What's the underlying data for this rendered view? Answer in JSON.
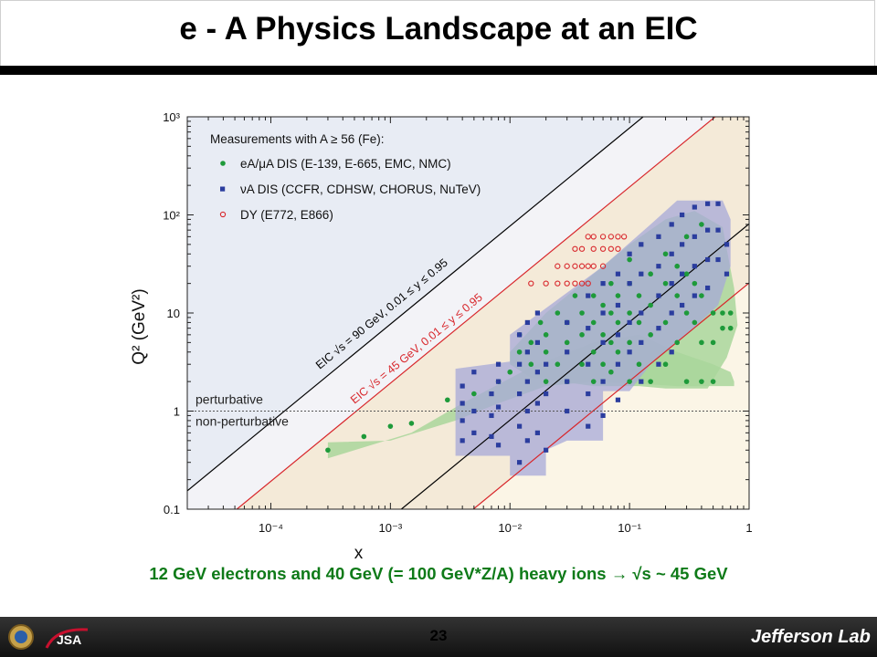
{
  "slide": {
    "title": "e - A Physics Landscape at an EIC",
    "caption": "12 GeV electrons and 40 GeV (= 100 GeV*Z/A) heavy ions  → √s ~  45 GeV",
    "page_number": "23",
    "footer_logo_text": "Jefferson Lab",
    "footer_left_text": "JSA"
  },
  "chart_data": {
    "type": "scatter",
    "xscale": "log",
    "yscale": "log",
    "xlim": [
      2e-05,
      1
    ],
    "ylim": [
      0.1,
      1000
    ],
    "xlabel": "x",
    "ylabel": "Q² (GeV²)",
    "x_ticks": [
      "10⁻⁴",
      "10⁻³",
      "10⁻²",
      "10⁻¹",
      "1"
    ],
    "x_tick_values": [
      0.0001,
      0.001,
      0.01,
      0.1,
      1
    ],
    "y_ticks": [
      "0.1",
      "1",
      "10",
      "10²",
      "10³"
    ],
    "y_tick_values": [
      0.1,
      1,
      10,
      100,
      1000
    ],
    "legend_title": "Measurements with A ≥ 56 (Fe):",
    "legend_position": "top-left",
    "series": [
      {
        "name": "eA/μA DIS (E-139, E-665, EMC, NMC)",
        "marker": "filled-circle",
        "color": "#1e9a3a",
        "points": [
          [
            0.0003,
            0.4
          ],
          [
            0.0006,
            0.55
          ],
          [
            0.001,
            0.7
          ],
          [
            0.0015,
            0.75
          ],
          [
            0.003,
            1.3
          ],
          [
            0.005,
            1.5
          ],
          [
            0.008,
            2
          ],
          [
            0.01,
            2.5
          ],
          [
            0.012,
            4
          ],
          [
            0.012,
            6
          ],
          [
            0.015,
            3
          ],
          [
            0.015,
            5
          ],
          [
            0.018,
            8
          ],
          [
            0.02,
            2
          ],
          [
            0.02,
            4
          ],
          [
            0.02,
            6
          ],
          [
            0.025,
            3
          ],
          [
            0.025,
            10
          ],
          [
            0.03,
            2
          ],
          [
            0.03,
            5
          ],
          [
            0.03,
            8
          ],
          [
            0.035,
            15
          ],
          [
            0.04,
            3
          ],
          [
            0.04,
            6
          ],
          [
            0.04,
            10
          ],
          [
            0.05,
            2
          ],
          [
            0.05,
            4
          ],
          [
            0.05,
            8
          ],
          [
            0.05,
            15
          ],
          [
            0.06,
            3
          ],
          [
            0.06,
            6
          ],
          [
            0.06,
            12
          ],
          [
            0.07,
            2.5
          ],
          [
            0.07,
            5
          ],
          [
            0.07,
            10
          ],
          [
            0.07,
            20
          ],
          [
            0.08,
            4
          ],
          [
            0.08,
            8
          ],
          [
            0.08,
            15
          ],
          [
            0.1,
            2
          ],
          [
            0.1,
            5
          ],
          [
            0.1,
            10
          ],
          [
            0.1,
            20
          ],
          [
            0.1,
            35
          ],
          [
            0.12,
            3
          ],
          [
            0.12,
            8
          ],
          [
            0.12,
            15
          ],
          [
            0.15,
            2
          ],
          [
            0.15,
            6
          ],
          [
            0.15,
            12
          ],
          [
            0.15,
            25
          ],
          [
            0.2,
            3
          ],
          [
            0.2,
            8
          ],
          [
            0.2,
            20
          ],
          [
            0.2,
            40
          ],
          [
            0.25,
            5
          ],
          [
            0.25,
            15
          ],
          [
            0.25,
            30
          ],
          [
            0.3,
            2
          ],
          [
            0.3,
            10
          ],
          [
            0.3,
            25
          ],
          [
            0.3,
            60
          ],
          [
            0.35,
            8
          ],
          [
            0.35,
            20
          ],
          [
            0.4,
            2
          ],
          [
            0.4,
            5
          ],
          [
            0.4,
            15
          ],
          [
            0.4,
            80
          ],
          [
            0.5,
            5
          ],
          [
            0.5,
            10
          ],
          [
            0.5,
            2
          ],
          [
            0.6,
            7
          ],
          [
            0.6,
            10
          ],
          [
            0.7,
            7
          ],
          [
            0.7,
            10
          ]
        ]
      },
      {
        "name": "νA DIS (CCFR, CDHSW, CHORUS, NuTeV)",
        "marker": "filled-square",
        "color": "#2b3d9e",
        "points": [
          [
            0.004,
            1.8
          ],
          [
            0.004,
            1.2
          ],
          [
            0.004,
            0.8
          ],
          [
            0.004,
            0.5
          ],
          [
            0.005,
            2.5
          ],
          [
            0.005,
            1
          ],
          [
            0.005,
            0.6
          ],
          [
            0.007,
            1.5
          ],
          [
            0.007,
            0.9
          ],
          [
            0.007,
            0.55
          ],
          [
            0.008,
            3
          ],
          [
            0.008,
            2
          ],
          [
            0.008,
            1.1
          ],
          [
            0.008,
            0.45
          ],
          [
            0.012,
            6
          ],
          [
            0.012,
            3
          ],
          [
            0.012,
            1.5
          ],
          [
            0.012,
            0.7
          ],
          [
            0.012,
            0.3
          ],
          [
            0.014,
            8
          ],
          [
            0.014,
            4
          ],
          [
            0.014,
            2
          ],
          [
            0.014,
            1
          ],
          [
            0.014,
            0.5
          ],
          [
            0.017,
            10
          ],
          [
            0.017,
            5
          ],
          [
            0.017,
            2.5
          ],
          [
            0.017,
            1.2
          ],
          [
            0.017,
            0.6
          ],
          [
            0.02,
            0.4
          ],
          [
            0.02,
            1.5
          ],
          [
            0.02,
            3
          ],
          [
            0.03,
            8
          ],
          [
            0.03,
            4
          ],
          [
            0.03,
            2
          ],
          [
            0.03,
            1
          ],
          [
            0.045,
            15
          ],
          [
            0.045,
            7
          ],
          [
            0.045,
            3
          ],
          [
            0.045,
            1.5
          ],
          [
            0.045,
            0.7
          ],
          [
            0.06,
            20
          ],
          [
            0.06,
            10
          ],
          [
            0.06,
            5
          ],
          [
            0.06,
            2
          ],
          [
            0.06,
            0.9
          ],
          [
            0.08,
            25
          ],
          [
            0.08,
            12
          ],
          [
            0.08,
            6
          ],
          [
            0.08,
            3
          ],
          [
            0.08,
            1.3
          ],
          [
            0.1,
            40
          ],
          [
            0.1,
            20
          ],
          [
            0.1,
            8
          ],
          [
            0.1,
            4
          ],
          [
            0.125,
            50
          ],
          [
            0.125,
            25
          ],
          [
            0.125,
            10
          ],
          [
            0.125,
            5
          ],
          [
            0.125,
            2
          ],
          [
            0.175,
            60
          ],
          [
            0.175,
            30
          ],
          [
            0.175,
            15
          ],
          [
            0.175,
            7
          ],
          [
            0.175,
            3
          ],
          [
            0.225,
            80
          ],
          [
            0.225,
            40
          ],
          [
            0.225,
            20
          ],
          [
            0.225,
            10
          ],
          [
            0.225,
            4
          ],
          [
            0.275,
            100
          ],
          [
            0.275,
            50
          ],
          [
            0.275,
            25
          ],
          [
            0.275,
            12
          ],
          [
            0.35,
            120
          ],
          [
            0.35,
            60
          ],
          [
            0.35,
            30
          ],
          [
            0.35,
            15
          ],
          [
            0.45,
            130
          ],
          [
            0.45,
            70
          ],
          [
            0.45,
            35
          ],
          [
            0.45,
            18
          ],
          [
            0.55,
            130
          ],
          [
            0.55,
            70
          ],
          [
            0.55,
            35
          ],
          [
            0.65,
            50
          ],
          [
            0.65,
            25
          ]
        ]
      },
      {
        "name": "DY (E772, E866)",
        "marker": "open-circle",
        "color": "#d8262b",
        "points": [
          [
            0.015,
            20
          ],
          [
            0.02,
            20
          ],
          [
            0.025,
            20
          ],
          [
            0.03,
            20
          ],
          [
            0.035,
            20
          ],
          [
            0.04,
            20
          ],
          [
            0.045,
            20
          ],
          [
            0.025,
            30
          ],
          [
            0.03,
            30
          ],
          [
            0.035,
            30
          ],
          [
            0.04,
            30
          ],
          [
            0.045,
            30
          ],
          [
            0.05,
            30
          ],
          [
            0.06,
            30
          ],
          [
            0.035,
            45
          ],
          [
            0.04,
            45
          ],
          [
            0.05,
            45
          ],
          [
            0.06,
            45
          ],
          [
            0.07,
            45
          ],
          [
            0.08,
            45
          ],
          [
            0.045,
            60
          ],
          [
            0.05,
            60
          ],
          [
            0.06,
            60
          ],
          [
            0.07,
            60
          ],
          [
            0.08,
            60
          ],
          [
            0.09,
            60
          ]
        ]
      }
    ],
    "lines": [
      {
        "label": "EIC √s = 90 GeV, 0.01 ≤ y ≤ 0.95",
        "color": "#000000"
      },
      {
        "label": "EIC √s = 45 GeV, 0.01 ≤ y ≤ 0.95",
        "color": "#d8262b"
      }
    ],
    "annotations": {
      "perturbative": "perturbative",
      "non_perturbative": "non-perturbative"
    }
  }
}
